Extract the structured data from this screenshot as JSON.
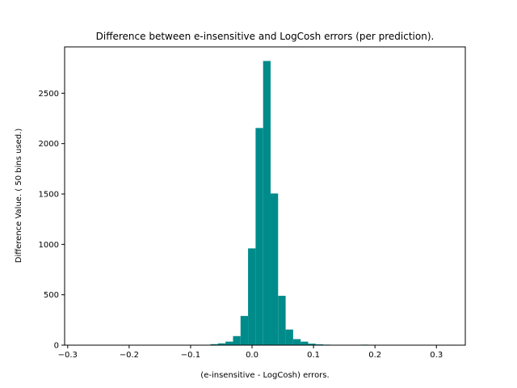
{
  "chart_data": {
    "type": "bar",
    "title": "Difference between  e-insensitive and LogCosh errors (per prediction).",
    "xlabel": "(e-insensitive - LogCosh) errors.",
    "ylabel": "Difference Value. ( 50 bins used.)",
    "xlim": [
      -0.305,
      0.347
    ],
    "ylim": [
      0,
      2960
    ],
    "x_ticks": [
      -0.3,
      -0.2,
      -0.1,
      0.0,
      0.1,
      0.2,
      0.3
    ],
    "x_tick_labels": [
      "−0.3",
      "−0.2",
      "−0.1",
      "0.0",
      "0.1",
      "0.2",
      "0.3"
    ],
    "y_ticks": [
      0,
      500,
      1000,
      1500,
      2000,
      2500
    ],
    "y_tick_labels": [
      "0",
      "500",
      "1000",
      "1500",
      "2000",
      "2500"
    ],
    "grid": false,
    "bar_color": "#008b8b",
    "bins": {
      "start": -0.2878,
      "width": 0.01223,
      "counts": [
        1,
        0,
        0,
        0,
        0,
        0,
        0,
        0,
        0,
        0,
        0,
        0,
        0,
        0,
        0,
        0,
        0,
        3,
        10,
        18,
        35,
        90,
        290,
        960,
        2155,
        2820,
        1505,
        490,
        155,
        60,
        35,
        15,
        8,
        5,
        3,
        0,
        0,
        3,
        5,
        4,
        2,
        0,
        4,
        0,
        0,
        0,
        0,
        0,
        0,
        1
      ]
    }
  }
}
